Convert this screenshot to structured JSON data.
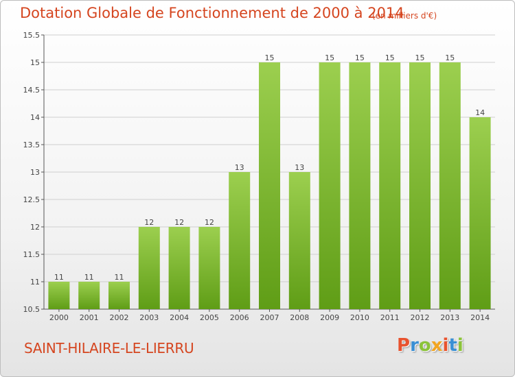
{
  "header": {
    "title": "Dotation Globale de Fonctionnement de 2000 à 2014",
    "unit": "(en milliers d'€)"
  },
  "footer": {
    "commune": "SAINT-HILAIRE-LE-LIERRU",
    "logo_text": "Proxiti"
  },
  "colors": {
    "title": "#d5451f",
    "bar_top": "#9ccf4f",
    "bar_bottom": "#5f9d16",
    "logo_letters": [
      "#e8522e",
      "#3a8fd4",
      "#8bc33a",
      "#f2a521",
      "#e8522e",
      "#3a8fd4",
      "#8bc33a"
    ]
  },
  "chart_data": {
    "type": "bar",
    "title": "Dotation Globale de Fonctionnement de 2000 à 2014",
    "subtitle": "(en milliers d'€)",
    "categories": [
      "2000",
      "2001",
      "2002",
      "2003",
      "2004",
      "2005",
      "2006",
      "2007",
      "2008",
      "2009",
      "2010",
      "2011",
      "2012",
      "2013",
      "2014"
    ],
    "values": [
      11,
      11,
      11,
      12,
      12,
      12,
      13,
      15,
      13,
      15,
      15,
      15,
      15,
      15,
      14
    ],
    "data_labels": [
      "11",
      "11",
      "11",
      "12",
      "12",
      "12",
      "13",
      "15",
      "13",
      "15",
      "15",
      "15",
      "15",
      "15",
      "14"
    ],
    "ylim": [
      10.5,
      15.5
    ],
    "yticks": [
      10.5,
      11,
      11.5,
      12,
      12.5,
      13,
      13.5,
      14,
      14.5,
      15,
      15.5
    ],
    "ytick_labels": [
      "10.5",
      "11",
      "11.5",
      "12",
      "12.5",
      "13",
      "13.5",
      "14",
      "14.5",
      "15",
      "15.5"
    ],
    "grid": true,
    "legend": "none"
  }
}
